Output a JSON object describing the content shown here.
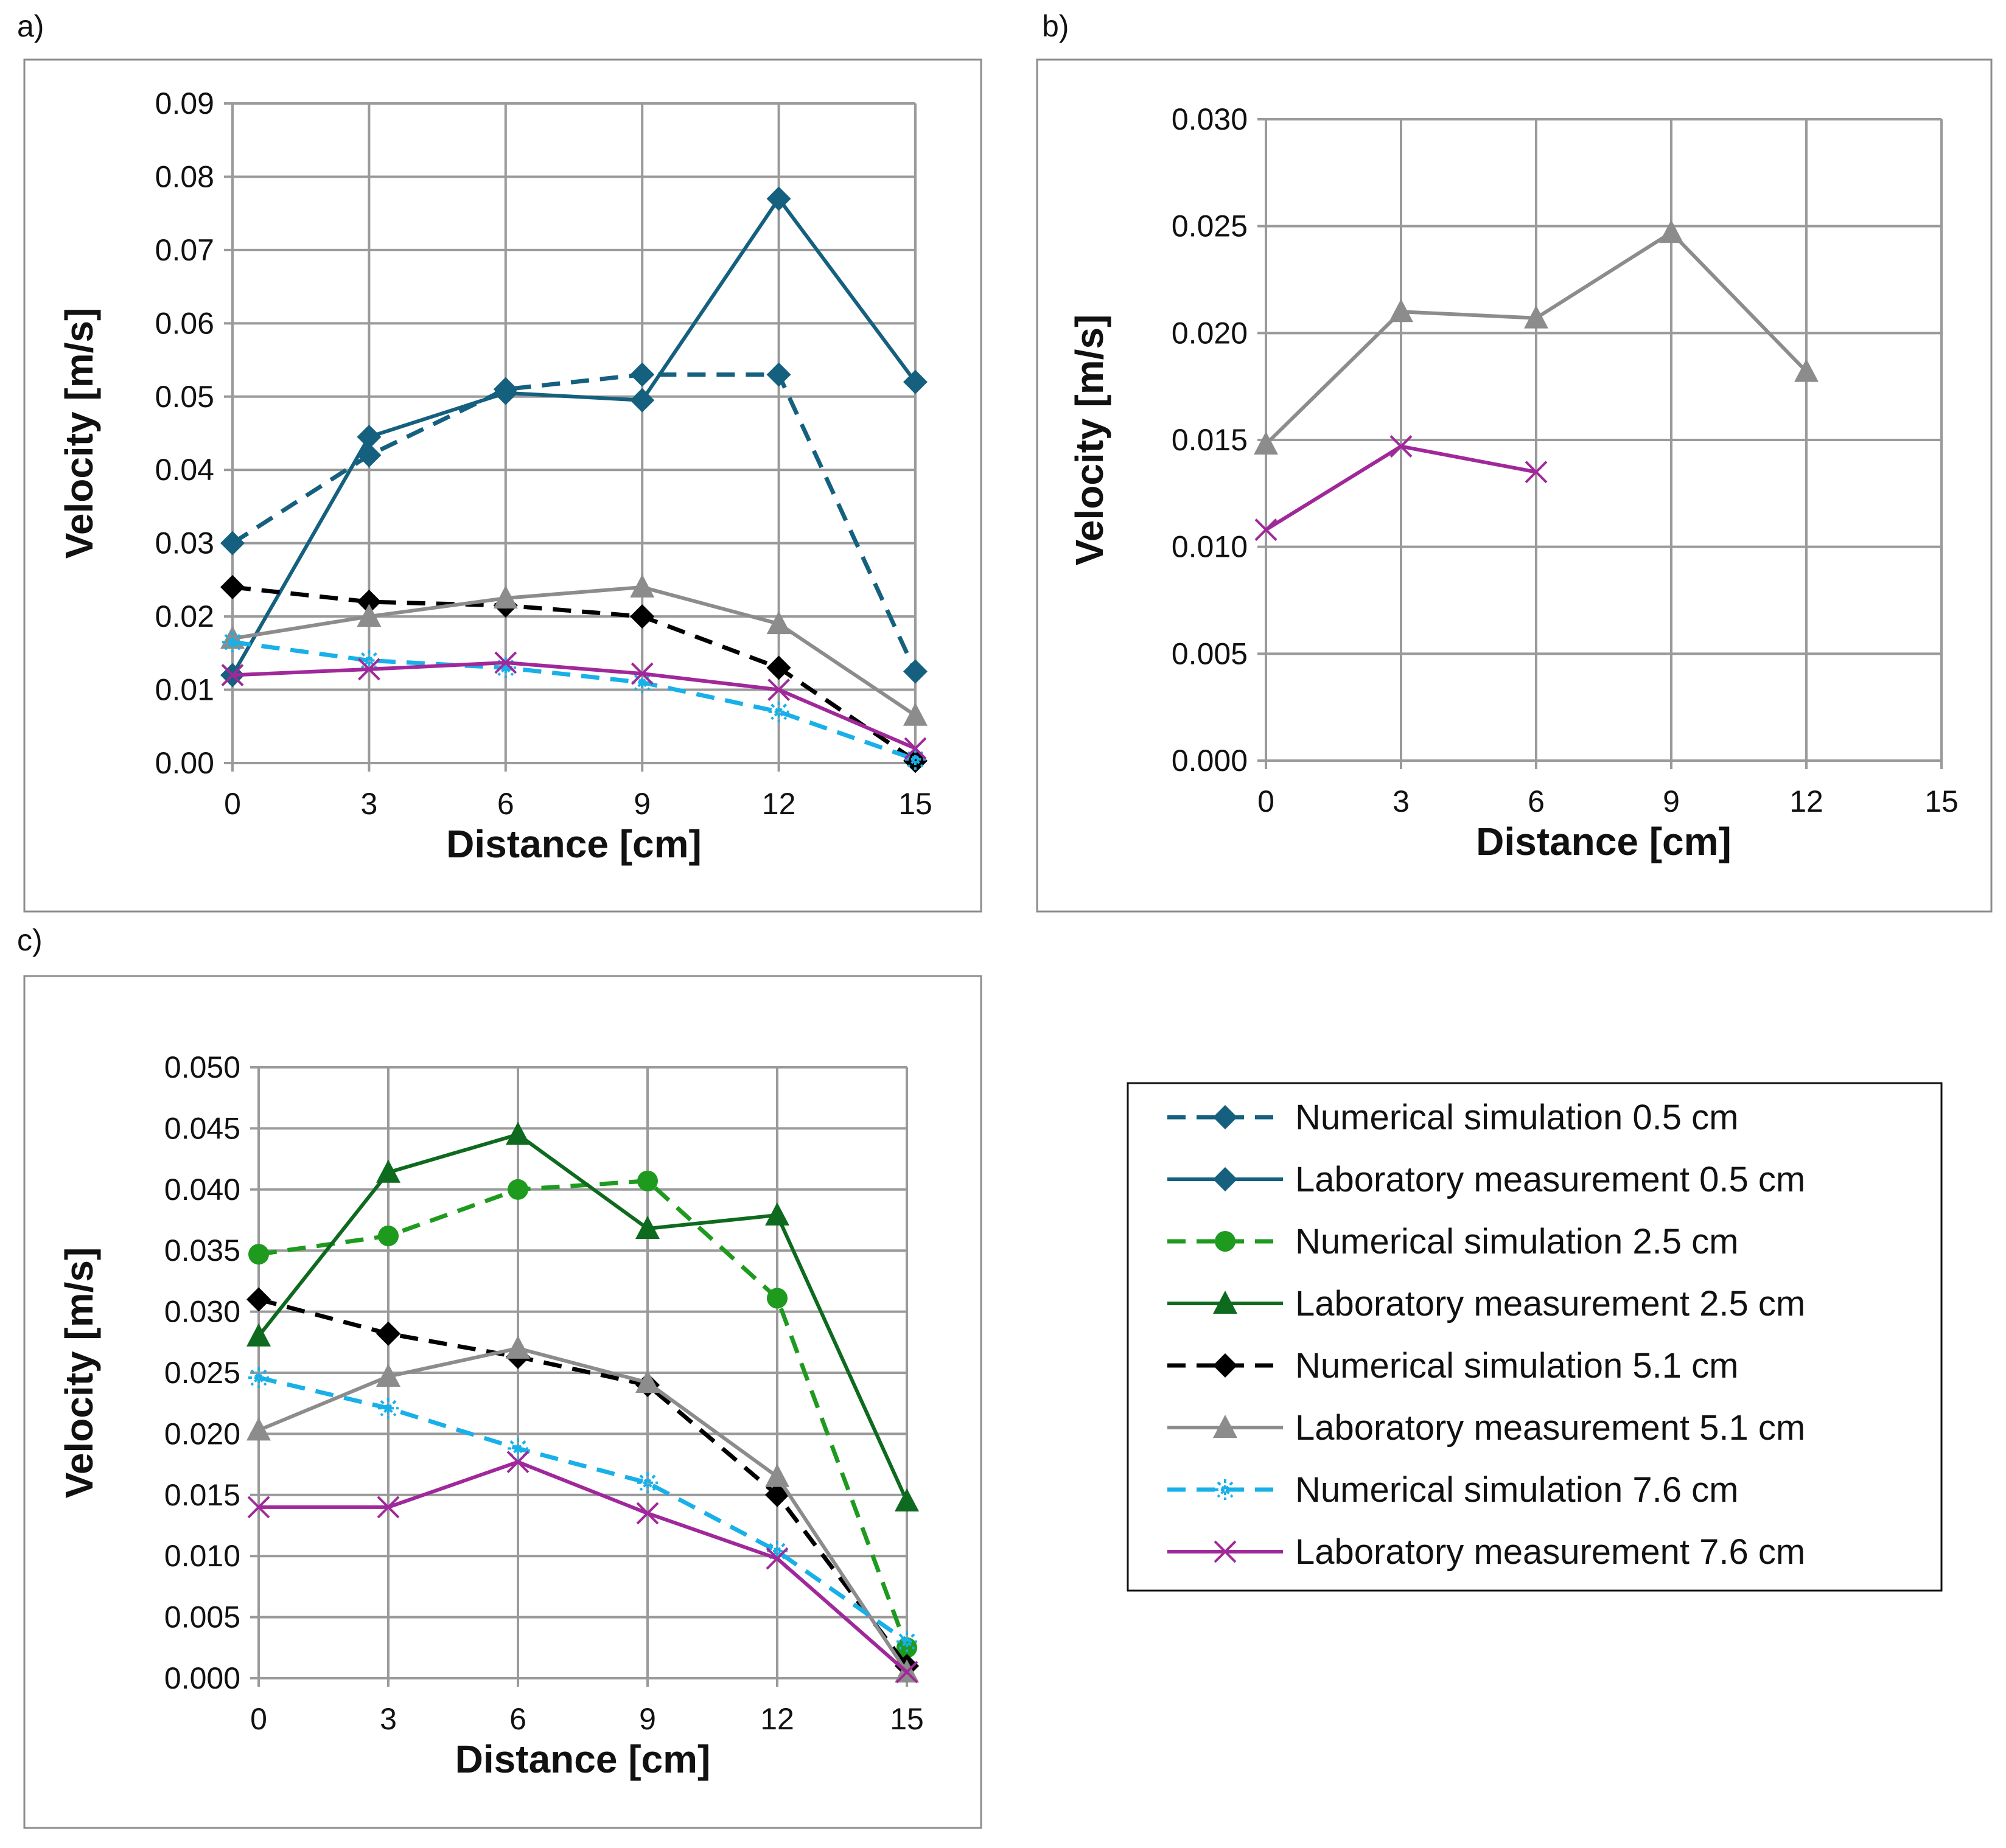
{
  "series_styles": {
    "ns05": {
      "name": "Numerical simulation 0.5 cm",
      "color": "#15607F",
      "dash": true,
      "marker": "diamond"
    },
    "lm05": {
      "name": "Laboratory measurement 0.5 cm",
      "color": "#15607F",
      "dash": false,
      "marker": "diamond"
    },
    "ns25": {
      "name": "Numerical simulation 2.5 cm",
      "color": "#1E9A1E",
      "dash": true,
      "marker": "circle"
    },
    "lm25": {
      "name": "Laboratory measurement 2.5 cm",
      "color": "#0E6A1E",
      "dash": false,
      "marker": "triangle"
    },
    "ns51": {
      "name": "Numerical simulation 5.1 cm",
      "color": "#000000",
      "dash": true,
      "marker": "diamond"
    },
    "lm51": {
      "name": "Laboratory measurement 5.1 cm",
      "color": "#8C8C8C",
      "dash": false,
      "marker": "triangle"
    },
    "ns76": {
      "name": "Numerical simulation 7.6 cm",
      "color": "#18B0E8",
      "dash": true,
      "marker": "star"
    },
    "lm76": {
      "name": "Laboratory measurement 7.6 cm",
      "color": "#A0289A",
      "dash": false,
      "marker": "x"
    }
  },
  "legend": {
    "placement": "right of panel c",
    "order": [
      "ns05",
      "lm05",
      "ns25",
      "lm25",
      "ns51",
      "lm51",
      "ns76",
      "lm76"
    ]
  },
  "chart_data": [
    {
      "panel_label": "a)",
      "type": "line",
      "xlabel": "Distance [cm]",
      "ylabel": "Velocity [m/s]",
      "x": [
        0,
        3,
        6,
        9,
        12,
        15
      ],
      "xticks": [
        "0",
        "3",
        "6",
        "9",
        "12",
        "15"
      ],
      "xlim": [
        0,
        15
      ],
      "ylim": [
        0,
        0.09
      ],
      "yticks": [
        "0.00",
        "0.01",
        "0.02",
        "0.03",
        "0.04",
        "0.05",
        "0.06",
        "0.07",
        "0.08",
        "0.09"
      ],
      "grid": true,
      "series": [
        {
          "key": "ns05",
          "values": [
            0.03,
            0.042,
            0.051,
            0.053,
            0.053,
            0.0125
          ]
        },
        {
          "key": "lm05",
          "values": [
            0.012,
            0.0445,
            0.0505,
            0.0495,
            0.077,
            0.052
          ]
        },
        {
          "key": "ns51",
          "values": [
            0.024,
            0.022,
            0.0215,
            0.02,
            0.013,
            0.0003
          ]
        },
        {
          "key": "lm51",
          "values": [
            0.017,
            0.02,
            0.0225,
            0.024,
            0.019,
            0.0065
          ]
        },
        {
          "key": "ns76",
          "values": [
            0.0165,
            0.014,
            0.013,
            0.011,
            0.007,
            0.0005
          ]
        },
        {
          "key": "lm76",
          "values": [
            0.012,
            0.0128,
            0.0137,
            0.0122,
            0.01,
            0.002
          ]
        }
      ]
    },
    {
      "panel_label": "b)",
      "type": "line",
      "xlabel": "Distance [cm]",
      "ylabel": "Velocity [m/s]",
      "x": [
        0,
        3,
        6,
        9,
        12,
        15
      ],
      "xticks": [
        "0",
        "3",
        "6",
        "9",
        "12",
        "15"
      ],
      "xlim": [
        0,
        15
      ],
      "ylim": [
        0,
        0.03
      ],
      "yticks": [
        "0.000",
        "0.005",
        "0.010",
        "0.015",
        "0.020",
        "0.025",
        "0.030"
      ],
      "grid": true,
      "series": [
        {
          "key": "lm51",
          "values": [
            0.0148,
            0.021,
            0.0207,
            0.0247,
            0.0182,
            null
          ]
        },
        {
          "key": "lm76",
          "values": [
            0.0108,
            0.0147,
            0.0135,
            null,
            null,
            null
          ]
        }
      ]
    },
    {
      "panel_label": "c)",
      "type": "line",
      "xlabel": "Distance [cm]",
      "ylabel": "Velocity [m/s]",
      "x": [
        0,
        3,
        6,
        9,
        12,
        15
      ],
      "xticks": [
        "0",
        "3",
        "6",
        "9",
        "12",
        "15"
      ],
      "xlim": [
        0,
        15
      ],
      "ylim": [
        0,
        0.05
      ],
      "yticks": [
        "0.000",
        "0.005",
        "0.010",
        "0.015",
        "0.020",
        "0.025",
        "0.030",
        "0.035",
        "0.040",
        "0.045",
        "0.050"
      ],
      "grid": true,
      "series": [
        {
          "key": "ns25",
          "values": [
            0.0347,
            0.0362,
            0.04,
            0.0407,
            0.0311,
            0.0025
          ]
        },
        {
          "key": "lm25",
          "values": [
            0.028,
            0.0414,
            0.0445,
            0.0368,
            0.0379,
            0.0145
          ]
        },
        {
          "key": "ns51",
          "values": [
            0.031,
            0.0282,
            0.0263,
            0.024,
            0.015,
            0.001
          ]
        },
        {
          "key": "lm51",
          "values": [
            0.0203,
            0.0247,
            0.027,
            0.0242,
            0.0165,
            0.0005
          ]
        },
        {
          "key": "ns76",
          "values": [
            0.0246,
            0.0221,
            0.0188,
            0.016,
            0.0104,
            0.003
          ]
        },
        {
          "key": "lm76",
          "values": [
            0.014,
            0.014,
            0.0177,
            0.0135,
            0.0098,
            0.0005
          ]
        }
      ]
    }
  ]
}
